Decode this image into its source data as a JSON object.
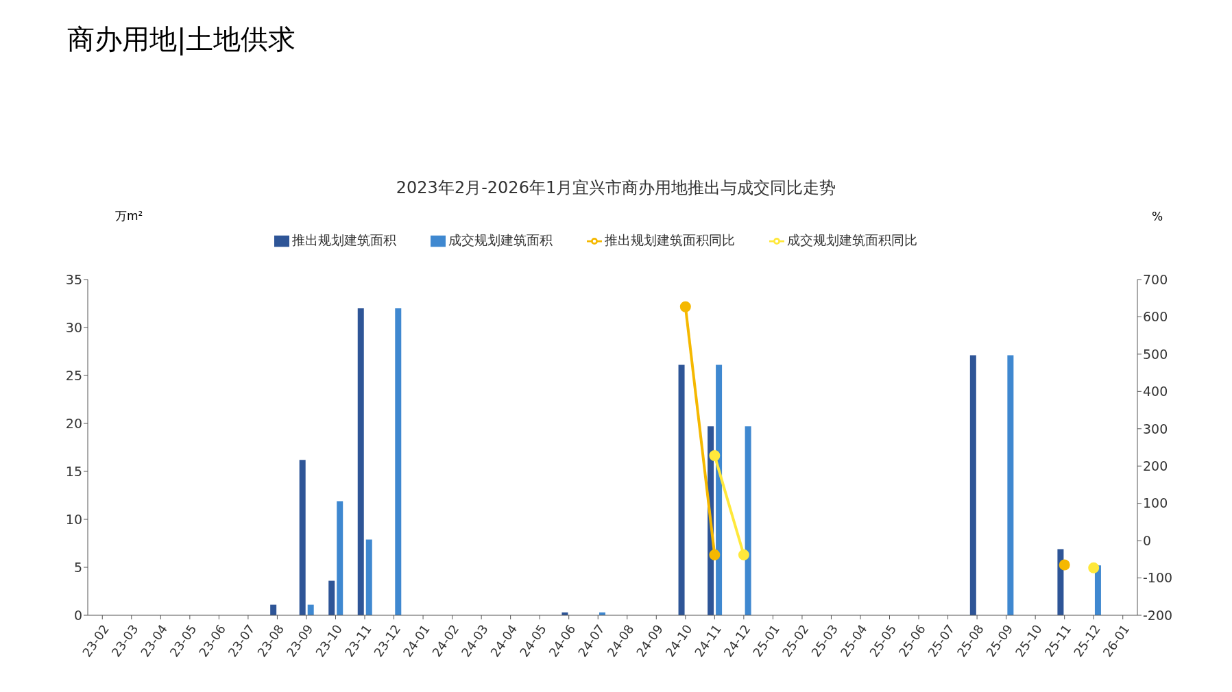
{
  "chart_data": {
    "type": "bar",
    "subtitle": "商办用地|土地供求",
    "title": "2023年2月-2026年1月宜兴市商办用地推出与成交同比走势",
    "ylabel": "万m²",
    "y2label": "%",
    "categories": [
      "23-02",
      "23-03",
      "23-04",
      "23-05",
      "23-06",
      "23-07",
      "23-08",
      "23-09",
      "23-10",
      "23-11",
      "23-12",
      "24-01",
      "24-02",
      "24-03",
      "24-04",
      "24-05",
      "24-06",
      "24-07",
      "24-08",
      "24-09",
      "24-10",
      "24-11",
      "24-12",
      "25-01",
      "25-02",
      "25-03",
      "25-04",
      "25-05",
      "25-06",
      "25-07",
      "25-08",
      "25-09",
      "25-10",
      "25-11",
      "25-12",
      "26-01"
    ],
    "series": [
      {
        "name": "推出规划建筑面积",
        "color": "#2e5597",
        "values": [
          0,
          0,
          0,
          0,
          0,
          0,
          1.1,
          16.2,
          3.6,
          32,
          0,
          0,
          0,
          0,
          0,
          0,
          0.3,
          0,
          0,
          0,
          26.1,
          19.7,
          0,
          0,
          0,
          0,
          0,
          0,
          0,
          0,
          27.1,
          0,
          0,
          6.9,
          0,
          0
        ]
      },
      {
        "name": "成交规划建筑面积",
        "color": "#3f88d0",
        "values": [
          0,
          0,
          0,
          0,
          0,
          0,
          0,
          1.1,
          11.9,
          7.9,
          32,
          0,
          0,
          0,
          0,
          0,
          0,
          0.3,
          0,
          0,
          0,
          26.1,
          19.7,
          0,
          0,
          0,
          0,
          0,
          0,
          0,
          0,
          27.1,
          0,
          0,
          5.2,
          0
        ]
      },
      {
        "name": "推出规划建筑面积同比",
        "type": "line",
        "axis": "y2",
        "color": "#f5b800",
        "values": [
          null,
          null,
          null,
          null,
          null,
          null,
          null,
          null,
          null,
          null,
          null,
          null,
          null,
          null,
          null,
          null,
          null,
          null,
          null,
          null,
          627,
          -38,
          null,
          null,
          null,
          null,
          null,
          null,
          null,
          null,
          null,
          null,
          null,
          -65,
          null,
          null
        ]
      },
      {
        "name": "成交规划建筑面积同比",
        "type": "line",
        "axis": "y2",
        "color": "#ffe83b",
        "values": [
          null,
          null,
          null,
          null,
          null,
          null,
          null,
          null,
          null,
          null,
          null,
          null,
          null,
          null,
          null,
          null,
          null,
          null,
          null,
          null,
          null,
          228,
          -38,
          null,
          null,
          null,
          null,
          null,
          null,
          null,
          null,
          null,
          null,
          null,
          -73,
          null
        ]
      }
    ],
    "ylim": [
      0,
      35
    ],
    "yticks": [
      0,
      5,
      10,
      15,
      20,
      25,
      30,
      35
    ],
    "y2lim": [
      -200,
      700
    ],
    "y2ticks": [
      -200,
      -100,
      0,
      100,
      200,
      300,
      400,
      500,
      600,
      700
    ],
    "legend": "top",
    "marker": "circle"
  }
}
